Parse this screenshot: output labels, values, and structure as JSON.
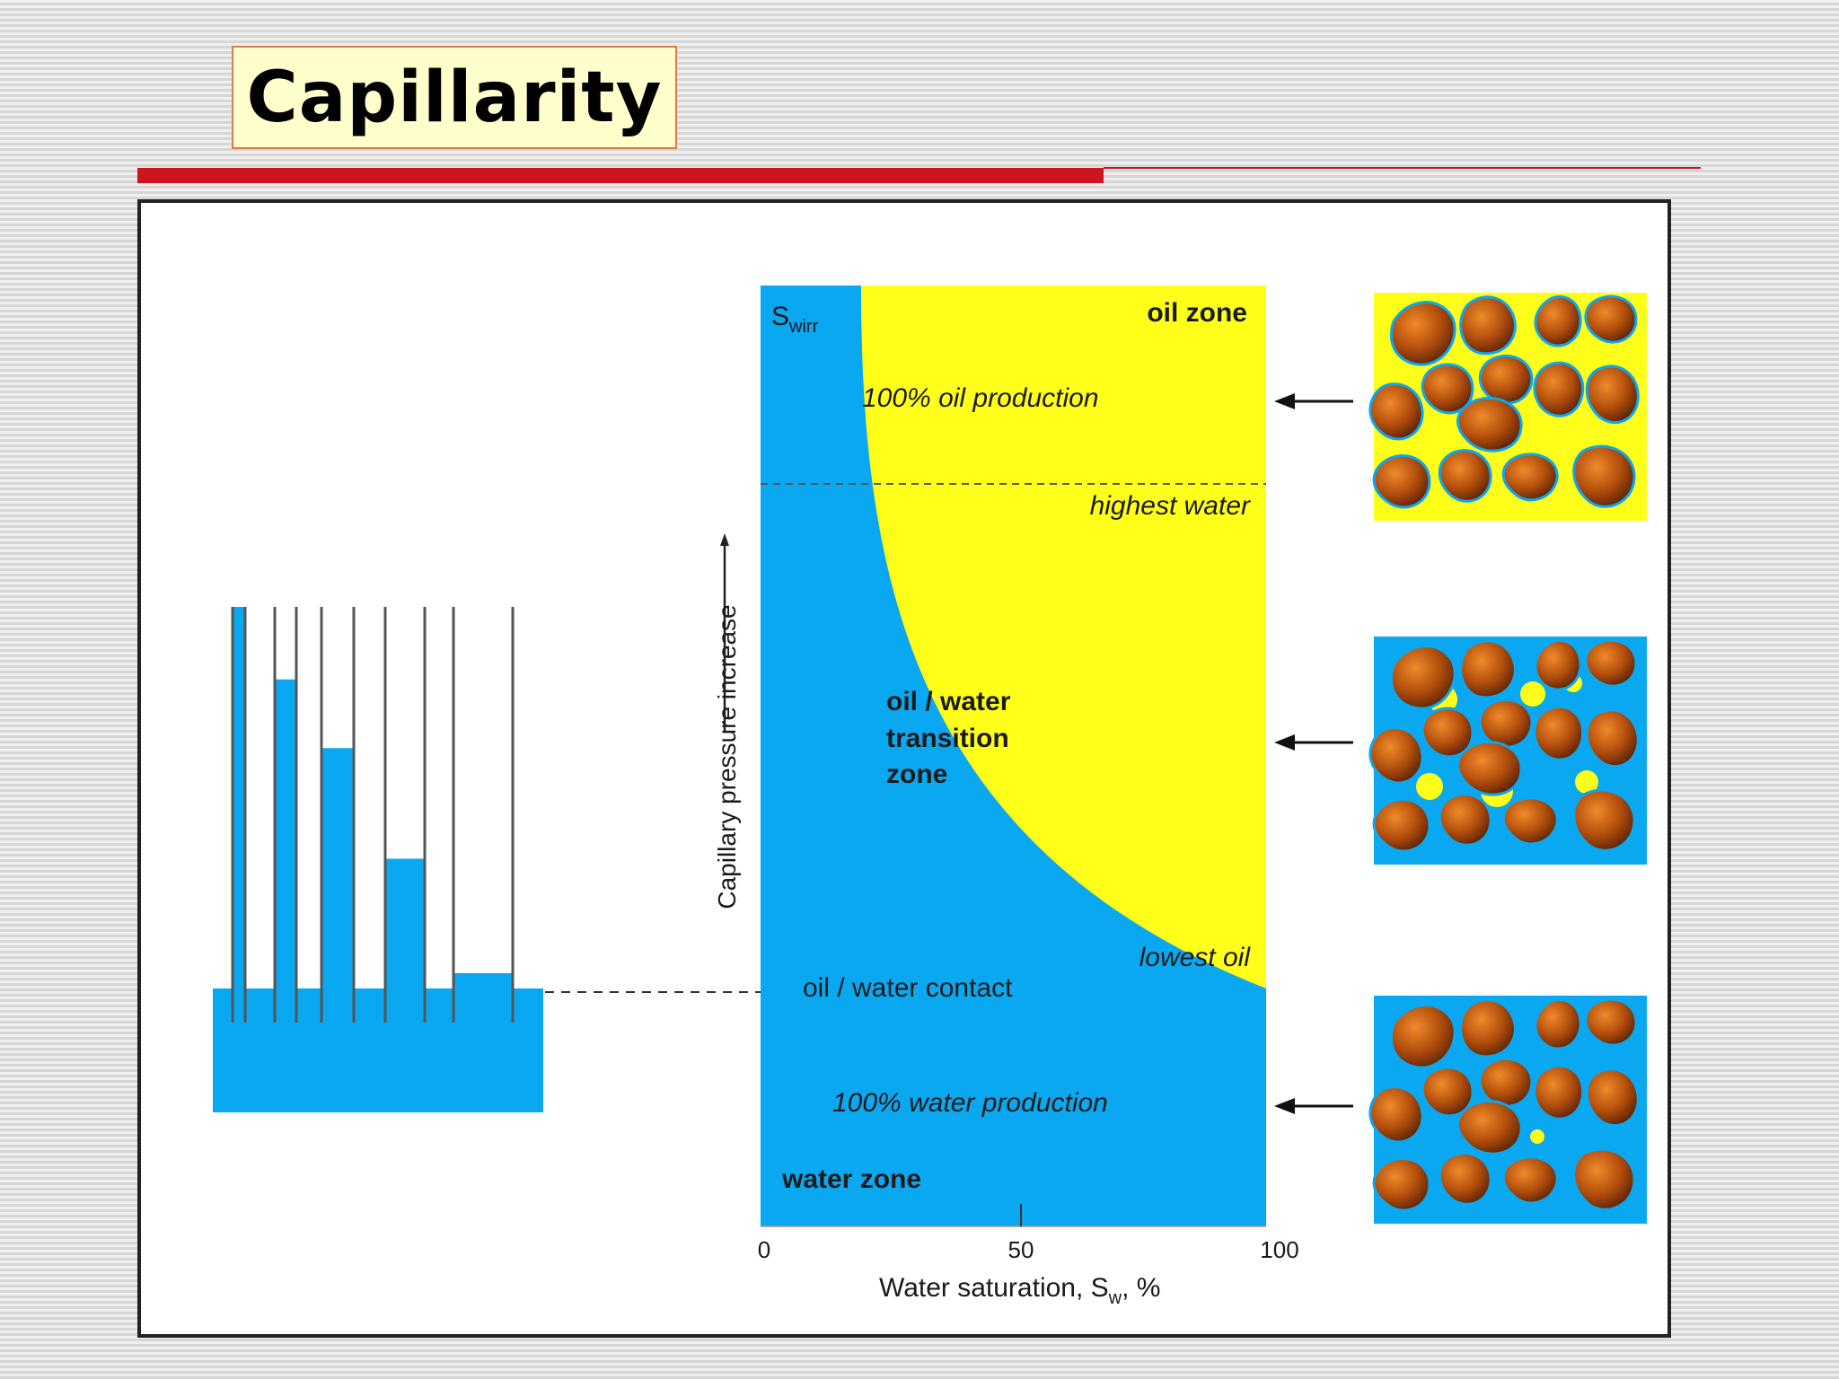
{
  "slide": {
    "title": "Capillarity",
    "accent_color": "#d0141c",
    "title_bg": "#ffffcc"
  },
  "diagram": {
    "colors": {
      "water": "#0aa8f0",
      "oil": "#ffff1a",
      "grain": "#b5500d"
    },
    "y_axis_label": "Capillary pressure increase",
    "x_axis_label": "Water saturation, S",
    "x_axis_label_sub": "w",
    "x_axis_label_tail": ", %",
    "x_ticks": [
      "0",
      "50",
      "100"
    ],
    "swirr_main": "S",
    "swirr_sub": "wirr",
    "labels": {
      "oil_zone": "oil  zone",
      "oil_production": "100%  oil  production",
      "highest_water": "highest  water",
      "transition_line1": "oil  /  water",
      "transition_line2": "transition",
      "transition_line3": "zone",
      "lowest_oil": "lowest  oil",
      "contact": "oil  /  water  contact",
      "water_production": "100%  water  production",
      "water_zone": "water  zone"
    },
    "capillary_tubes": [
      {
        "name": "tube-1",
        "relative_rise": 1.0
      },
      {
        "name": "tube-2",
        "relative_rise": 0.81
      },
      {
        "name": "tube-3",
        "relative_rise": 0.63
      },
      {
        "name": "tube-4",
        "relative_rise": 0.34
      },
      {
        "name": "tube-5",
        "relative_rise": 0.04
      }
    ],
    "pore_panels": [
      {
        "name": "pore-oil-zone",
        "fill": "oil"
      },
      {
        "name": "pore-transition-zone",
        "fill": "mixed"
      },
      {
        "name": "pore-water-zone",
        "fill": "water"
      }
    ]
  }
}
